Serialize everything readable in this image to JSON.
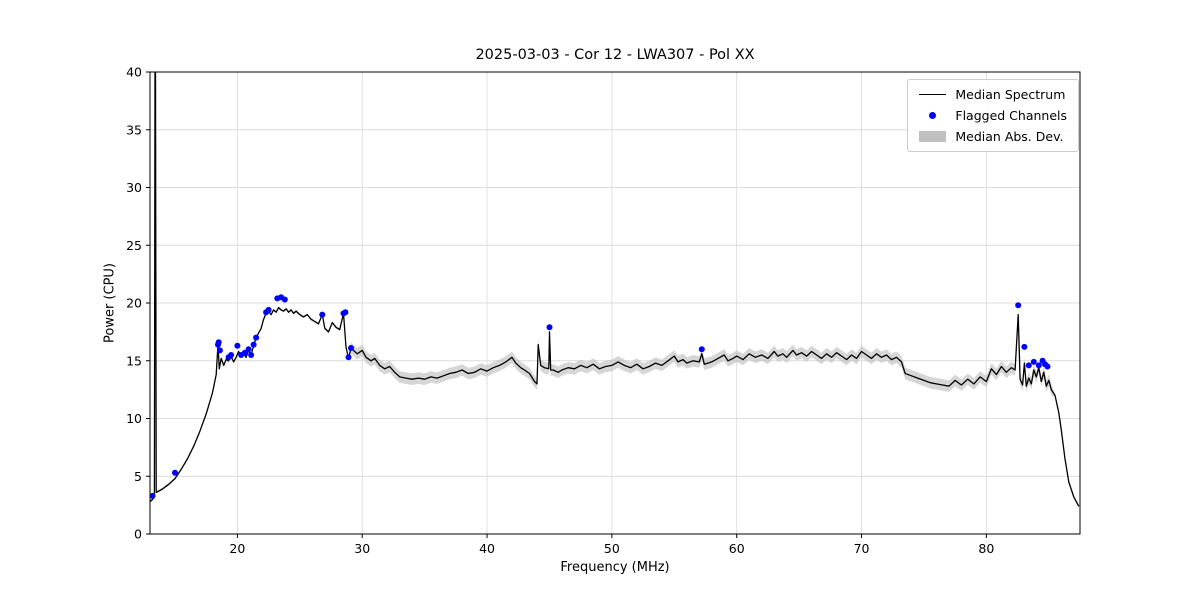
{
  "chart_data": {
    "type": "line",
    "title": "2025-03-03 - Cor 12 - LWA307 - Pol XX",
    "xlabel": "Frequency (MHz)",
    "ylabel": "Power (CPU)",
    "xlim": [
      13.0,
      87.5
    ],
    "ylim": [
      0,
      40
    ],
    "xticks": [
      20,
      30,
      40,
      50,
      60,
      70,
      80
    ],
    "yticks": [
      0,
      5,
      10,
      15,
      20,
      25,
      30,
      35,
      40
    ],
    "grid": true,
    "legend_position": "upper right",
    "legend": {
      "items": [
        {
          "label": "Median Spectrum",
          "swatch": "line"
        },
        {
          "label": "Flagged Channels",
          "swatch": "dot"
        },
        {
          "label": "Median Abs. Dev.",
          "swatch": "patch"
        }
      ]
    },
    "colors": {
      "line": "#000000",
      "flagged": "#0000ff",
      "band": "#c0c0c0",
      "grid": "#dcdcdc",
      "spine": "#000000"
    },
    "series": [
      {
        "name": "Median Spectrum",
        "color": "#000000",
        "x": [
          13.0,
          13.2,
          13.35,
          13.4,
          13.44,
          13.5,
          14.0,
          14.5,
          15.0,
          15.5,
          16.0,
          16.5,
          17.0,
          17.5,
          18.0,
          18.3,
          18.45,
          18.55,
          18.7,
          18.9,
          19.1,
          19.3,
          19.5,
          19.7,
          19.9,
          20.1,
          20.3,
          20.5,
          20.7,
          20.9,
          21.1,
          21.3,
          21.5,
          21.7,
          21.9,
          22.1,
          22.3,
          22.5,
          22.7,
          22.9,
          23.1,
          23.3,
          23.5,
          23.7,
          23.9,
          24.1,
          24.3,
          24.5,
          24.7,
          25.0,
          25.3,
          25.6,
          25.9,
          26.2,
          26.5,
          26.8,
          27.0,
          27.3,
          27.6,
          27.9,
          28.2,
          28.5,
          28.7,
          28.9,
          29.1,
          29.3,
          29.6,
          30.0,
          30.3,
          30.7,
          31.0,
          31.4,
          31.8,
          32.2,
          32.6,
          33.0,
          33.5,
          34.0,
          34.5,
          35.0,
          35.5,
          36.0,
          36.5,
          37.0,
          37.5,
          38.0,
          38.5,
          39.0,
          39.5,
          40.0,
          40.5,
          41.0,
          41.5,
          42.0,
          42.3,
          42.7,
          43.0,
          43.4,
          43.8,
          44.0,
          44.1,
          44.3,
          44.6,
          44.95,
          45.0,
          45.1,
          45.3,
          45.7,
          46.0,
          46.5,
          47.0,
          47.5,
          48.0,
          48.5,
          49.0,
          49.5,
          50.0,
          50.5,
          51.0,
          51.5,
          52.0,
          52.5,
          53.0,
          53.5,
          54.0,
          54.5,
          55.0,
          55.3,
          55.7,
          56.0,
          56.5,
          57.0,
          57.2,
          57.4,
          58.0,
          58.5,
          59.0,
          59.3,
          59.7,
          60.0,
          60.5,
          61.0,
          61.5,
          62.0,
          62.5,
          63.0,
          63.3,
          63.7,
          64.0,
          64.5,
          64.8,
          65.2,
          65.6,
          66.0,
          66.4,
          66.8,
          67.2,
          67.6,
          68.0,
          68.4,
          68.8,
          69.2,
          69.6,
          70.0,
          70.4,
          70.8,
          71.2,
          71.6,
          72.0,
          72.4,
          72.8,
          73.2,
          73.5,
          74.0,
          74.5,
          75.0,
          75.5,
          76.0,
          76.5,
          77.0,
          77.5,
          78.0,
          78.5,
          79.0,
          79.5,
          80.0,
          80.4,
          80.8,
          81.2,
          81.6,
          82.0,
          82.3,
          82.55,
          82.7,
          82.9,
          83.05,
          83.2,
          83.4,
          83.6,
          83.8,
          84.0,
          84.2,
          84.4,
          84.6,
          84.8,
          85.0,
          85.2,
          85.5,
          85.8,
          86.0,
          86.3,
          86.6,
          87.0,
          87.4
        ],
        "y": [
          2.8,
          3.0,
          3.2,
          40,
          40,
          3.6,
          3.9,
          4.3,
          4.8,
          5.6,
          6.5,
          7.6,
          8.9,
          10.4,
          12.2,
          13.8,
          16.4,
          14.3,
          15.2,
          14.6,
          15.1,
          15.0,
          15.4,
          14.9,
          15.3,
          15.8,
          15.4,
          15.6,
          15.3,
          15.9,
          15.5,
          16.3,
          17.0,
          17.4,
          17.8,
          18.6,
          19.1,
          19.3,
          19.0,
          19.4,
          19.2,
          19.6,
          19.4,
          19.3,
          19.5,
          19.2,
          19.4,
          19.1,
          19.3,
          19.0,
          18.8,
          19.0,
          18.6,
          18.4,
          18.2,
          19.0,
          17.8,
          17.5,
          18.3,
          17.9,
          17.7,
          19.1,
          16.2,
          15.2,
          16.1,
          15.9,
          15.6,
          15.9,
          15.3,
          15.0,
          15.2,
          14.6,
          14.3,
          14.5,
          14.0,
          13.6,
          13.5,
          13.4,
          13.5,
          13.4,
          13.6,
          13.5,
          13.7,
          13.9,
          14.0,
          14.2,
          13.9,
          14.0,
          14.3,
          14.1,
          14.4,
          14.6,
          14.9,
          15.3,
          14.8,
          14.4,
          14.2,
          13.9,
          13.2,
          13.0,
          16.4,
          14.6,
          14.4,
          14.3,
          17.5,
          14.2,
          14.2,
          14.0,
          14.2,
          14.4,
          14.3,
          14.6,
          14.4,
          14.7,
          14.3,
          14.5,
          14.6,
          14.9,
          14.6,
          14.4,
          14.7,
          14.3,
          14.5,
          14.8,
          14.6,
          15.0,
          15.4,
          14.9,
          15.1,
          14.8,
          15.0,
          14.9,
          15.6,
          14.7,
          14.9,
          15.2,
          15.5,
          15.0,
          15.2,
          15.4,
          15.1,
          15.6,
          15.3,
          15.5,
          15.2,
          15.8,
          15.4,
          15.6,
          15.3,
          15.9,
          15.5,
          15.7,
          15.4,
          15.8,
          15.5,
          15.2,
          15.6,
          15.3,
          15.7,
          15.4,
          15.1,
          15.5,
          15.2,
          15.8,
          15.5,
          15.2,
          15.6,
          15.3,
          15.5,
          15.1,
          15.3,
          14.9,
          13.9,
          13.7,
          13.5,
          13.3,
          13.1,
          13.0,
          12.9,
          12.8,
          13.3,
          12.9,
          13.4,
          13.0,
          13.6,
          13.2,
          14.3,
          13.8,
          14.5,
          14.0,
          14.4,
          14.2,
          19.0,
          13.4,
          12.9,
          14.8,
          12.8,
          13.5,
          13.0,
          14.2,
          13.6,
          14.4,
          13.2,
          14.0,
          12.8,
          13.3,
          12.5,
          12.0,
          10.5,
          9.0,
          6.5,
          4.5,
          3.2,
          2.4
        ]
      }
    ],
    "mad_segments": [
      {
        "from": 13.0,
        "to": 29.0,
        "hw": 0.12
      },
      {
        "from": 29.0,
        "to": 85.3,
        "hw": 0.5
      },
      {
        "from": 85.3,
        "to": 87.5,
        "hw": 0.15
      }
    ],
    "flagged": {
      "name": "Flagged Channels",
      "color": "#0000ff",
      "points": [
        [
          13.2,
          3.3
        ],
        [
          15.0,
          5.3
        ],
        [
          18.45,
          16.4
        ],
        [
          18.5,
          16.6
        ],
        [
          18.6,
          15.9
        ],
        [
          19.3,
          15.3
        ],
        [
          19.5,
          15.5
        ],
        [
          20.0,
          16.3
        ],
        [
          20.3,
          15.5
        ],
        [
          20.6,
          15.7
        ],
        [
          20.9,
          16.0
        ],
        [
          21.1,
          15.5
        ],
        [
          21.3,
          16.4
        ],
        [
          21.5,
          17.0
        ],
        [
          22.3,
          19.2
        ],
        [
          22.5,
          19.4
        ],
        [
          23.2,
          20.4
        ],
        [
          23.5,
          20.5
        ],
        [
          23.8,
          20.3
        ],
        [
          26.8,
          19.0
        ],
        [
          28.5,
          19.1
        ],
        [
          28.65,
          19.2
        ],
        [
          28.9,
          15.3
        ],
        [
          29.1,
          16.1
        ],
        [
          45.0,
          17.9
        ],
        [
          57.2,
          16.0
        ],
        [
          82.55,
          19.8
        ],
        [
          83.05,
          16.2
        ],
        [
          83.4,
          14.6
        ],
        [
          83.8,
          14.9
        ],
        [
          84.2,
          14.6
        ],
        [
          84.5,
          15.0
        ],
        [
          84.7,
          14.7
        ],
        [
          84.9,
          14.5
        ]
      ]
    }
  }
}
